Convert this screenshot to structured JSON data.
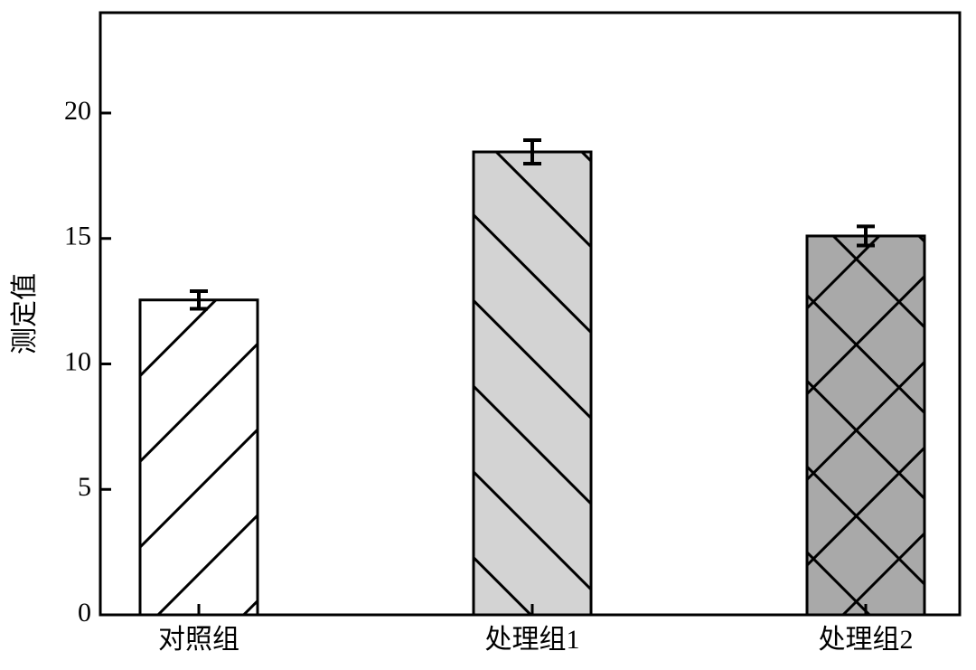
{
  "chart_data": {
    "type": "bar",
    "y_label": "测定值",
    "categories": [
      "对照组",
      "处理组1",
      "处理组2"
    ],
    "values": [
      12.55,
      18.45,
      15.1
    ],
    "errors": [
      0.35,
      0.47,
      0.38
    ],
    "colors": [
      "#ffffff",
      "#d3d3d3",
      "#a9a9a9"
    ],
    "hatches": [
      "/",
      "\\",
      "x"
    ],
    "ylim": [
      0,
      24
    ],
    "yticks": [
      0,
      5,
      10,
      15,
      20
    ]
  }
}
